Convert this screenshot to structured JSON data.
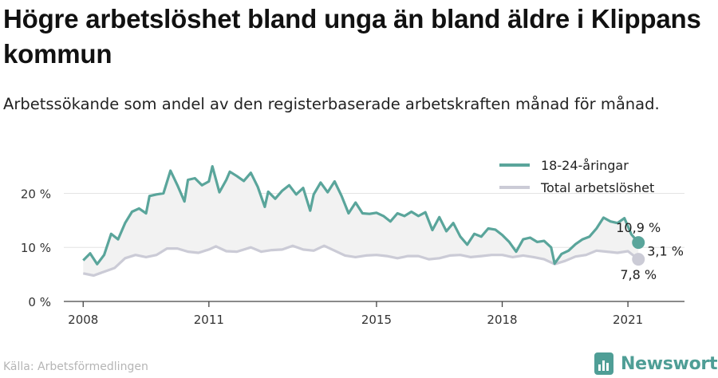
{
  "title": "Högre arbetslöshet bland unga än bland äldre i Klippans kommun",
  "subtitle": "Arbetssökande som andel av den registerbaserade arbetskraften månad för månad.",
  "source": "Källa: Arbetsförmedlingen",
  "brand": {
    "name": "Newsworthy",
    "icon": "newsworthy-logo-icon"
  },
  "colors": {
    "youth": "#5aa59b",
    "total": "#cbcbd6",
    "band": "#f2f2f2",
    "grid": "#e4e4e4"
  },
  "chart_data": {
    "type": "line",
    "x_ticks": [
      "2008",
      "2011",
      "2015",
      "2018",
      "2021"
    ],
    "y_ticks": [
      "0 %",
      "10 %",
      "20 %"
    ],
    "ylim": [
      0,
      27
    ],
    "grid": true,
    "legend_position": "top-right",
    "fill_between_series": true,
    "series": [
      {
        "name": "18-24-åringar",
        "color": "#5aa59b",
        "points": [
          [
            "2008-01",
            7.6
          ],
          [
            "2008-03",
            8.9
          ],
          [
            "2008-05",
            6.9
          ],
          [
            "2008-07",
            8.6
          ],
          [
            "2008-09",
            12.5
          ],
          [
            "2008-11",
            11.5
          ],
          [
            "2009-01",
            14.5
          ],
          [
            "2009-03",
            16.6
          ],
          [
            "2009-05",
            17.2
          ],
          [
            "2009-07",
            16.3
          ],
          [
            "2009-08",
            19.5
          ],
          [
            "2009-10",
            19.8
          ],
          [
            "2009-12",
            20.0
          ],
          [
            "2010-02",
            24.2
          ],
          [
            "2010-04",
            21.5
          ],
          [
            "2010-06",
            18.5
          ],
          [
            "2010-07",
            22.5
          ],
          [
            "2010-09",
            22.8
          ],
          [
            "2010-11",
            21.5
          ],
          [
            "2011-01",
            22.2
          ],
          [
            "2011-02",
            25.0
          ],
          [
            "2011-04",
            20.2
          ],
          [
            "2011-06",
            22.5
          ],
          [
            "2011-07",
            24.0
          ],
          [
            "2011-09",
            23.2
          ],
          [
            "2011-11",
            22.3
          ],
          [
            "2012-01",
            23.8
          ],
          [
            "2012-03",
            21.2
          ],
          [
            "2012-05",
            17.5
          ],
          [
            "2012-06",
            20.3
          ],
          [
            "2012-08",
            19.0
          ],
          [
            "2012-10",
            20.5
          ],
          [
            "2012-12",
            21.5
          ],
          [
            "2013-02",
            19.8
          ],
          [
            "2013-04",
            21.0
          ],
          [
            "2013-06",
            16.8
          ],
          [
            "2013-07",
            19.8
          ],
          [
            "2013-09",
            22.0
          ],
          [
            "2013-11",
            20.2
          ],
          [
            "2014-01",
            22.2
          ],
          [
            "2014-03",
            19.5
          ],
          [
            "2014-05",
            16.3
          ],
          [
            "2014-07",
            18.3
          ],
          [
            "2014-09",
            16.3
          ],
          [
            "2014-11",
            16.2
          ],
          [
            "2015-01",
            16.4
          ],
          [
            "2015-03",
            15.8
          ],
          [
            "2015-05",
            14.8
          ],
          [
            "2015-07",
            16.3
          ],
          [
            "2015-09",
            15.8
          ],
          [
            "2015-11",
            16.6
          ],
          [
            "2016-01",
            15.8
          ],
          [
            "2016-03",
            16.5
          ],
          [
            "2016-05",
            13.2
          ],
          [
            "2016-07",
            15.6
          ],
          [
            "2016-09",
            13.0
          ],
          [
            "2016-11",
            14.5
          ],
          [
            "2017-01",
            12.0
          ],
          [
            "2017-03",
            10.5
          ],
          [
            "2017-05",
            12.5
          ],
          [
            "2017-07",
            12.0
          ],
          [
            "2017-09",
            13.5
          ],
          [
            "2017-11",
            13.3
          ],
          [
            "2018-01",
            12.3
          ],
          [
            "2018-03",
            11.0
          ],
          [
            "2018-05",
            9.2
          ],
          [
            "2018-07",
            11.5
          ],
          [
            "2018-09",
            11.8
          ],
          [
            "2018-11",
            11.0
          ],
          [
            "2019-01",
            11.2
          ],
          [
            "2019-03",
            10.0
          ],
          [
            "2019-04",
            7.0
          ],
          [
            "2019-06",
            8.8
          ],
          [
            "2019-08",
            9.4
          ],
          [
            "2019-10",
            10.6
          ],
          [
            "2019-12",
            11.5
          ],
          [
            "2020-02",
            12.0
          ],
          [
            "2020-04",
            13.5
          ],
          [
            "2020-06",
            15.5
          ],
          [
            "2020-08",
            14.8
          ],
          [
            "2020-10",
            14.5
          ],
          [
            "2020-12",
            15.4
          ],
          [
            "2021-02",
            12.4
          ],
          [
            "2021-04",
            10.9
          ]
        ]
      },
      {
        "name": "Total arbetslöshet",
        "color": "#cbcbd6",
        "points": [
          [
            "2008-01",
            5.2
          ],
          [
            "2008-04",
            4.8
          ],
          [
            "2008-07",
            5.5
          ],
          [
            "2008-10",
            6.2
          ],
          [
            "2009-01",
            8.0
          ],
          [
            "2009-04",
            8.6
          ],
          [
            "2009-07",
            8.2
          ],
          [
            "2009-10",
            8.6
          ],
          [
            "2010-01",
            9.8
          ],
          [
            "2010-04",
            9.8
          ],
          [
            "2010-07",
            9.2
          ],
          [
            "2010-10",
            9.0
          ],
          [
            "2011-01",
            9.6
          ],
          [
            "2011-03",
            10.2
          ],
          [
            "2011-06",
            9.3
          ],
          [
            "2011-09",
            9.2
          ],
          [
            "2012-01",
            10.0
          ],
          [
            "2012-04",
            9.2
          ],
          [
            "2012-07",
            9.5
          ],
          [
            "2012-10",
            9.6
          ],
          [
            "2013-01",
            10.3
          ],
          [
            "2013-04",
            9.6
          ],
          [
            "2013-07",
            9.4
          ],
          [
            "2013-10",
            10.3
          ],
          [
            "2014-01",
            9.4
          ],
          [
            "2014-04",
            8.5
          ],
          [
            "2014-07",
            8.2
          ],
          [
            "2014-10",
            8.5
          ],
          [
            "2015-01",
            8.6
          ],
          [
            "2015-04",
            8.4
          ],
          [
            "2015-07",
            8.0
          ],
          [
            "2015-10",
            8.4
          ],
          [
            "2016-01",
            8.4
          ],
          [
            "2016-04",
            7.8
          ],
          [
            "2016-07",
            8.0
          ],
          [
            "2016-10",
            8.5
          ],
          [
            "2017-01",
            8.6
          ],
          [
            "2017-04",
            8.2
          ],
          [
            "2017-07",
            8.4
          ],
          [
            "2017-10",
            8.6
          ],
          [
            "2018-01",
            8.6
          ],
          [
            "2018-04",
            8.2
          ],
          [
            "2018-07",
            8.5
          ],
          [
            "2018-10",
            8.2
          ],
          [
            "2019-01",
            7.8
          ],
          [
            "2019-04",
            6.9
          ],
          [
            "2019-07",
            7.5
          ],
          [
            "2019-10",
            8.3
          ],
          [
            "2020-01",
            8.6
          ],
          [
            "2020-04",
            9.4
          ],
          [
            "2020-07",
            9.2
          ],
          [
            "2020-10",
            9.0
          ],
          [
            "2021-01",
            9.3
          ],
          [
            "2021-04",
            7.8
          ]
        ]
      }
    ],
    "end_labels": {
      "youth": "10,9 %",
      "total": "7,8 %",
      "difference": "3,1 %"
    }
  }
}
